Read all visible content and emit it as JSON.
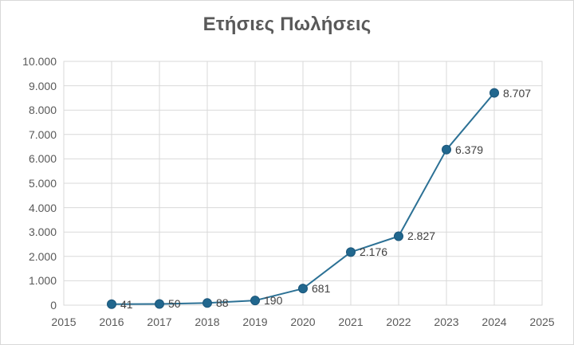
{
  "chart_data": {
    "type": "line",
    "title": "Ετήσιες Πωλήσεις",
    "x": [
      2016,
      2017,
      2018,
      2019,
      2020,
      2021,
      2022,
      2023,
      2024
    ],
    "values": [
      41,
      50,
      88,
      190,
      681,
      2176,
      2827,
      6379,
      8707
    ],
    "point_labels": [
      "41",
      "50",
      "88",
      "190",
      "681",
      "2.176",
      "2.827",
      "6.379",
      "8.707"
    ],
    "x_ticks": [
      "2015",
      "2016",
      "2017",
      "2018",
      "2019",
      "2020",
      "2021",
      "2022",
      "2023",
      "2024",
      "2025"
    ],
    "y_ticks": [
      "0",
      "1.000",
      "2.000",
      "3.000",
      "4.000",
      "5.000",
      "6.000",
      "7.000",
      "8.000",
      "9.000",
      "10.000"
    ],
    "xlim": [
      2015,
      2025
    ],
    "ylim": [
      0,
      10000
    ],
    "xlabel": "",
    "ylabel": "",
    "grid": "on",
    "legend": "none",
    "data_label_position": "right-of-marker",
    "colors": {
      "line": "#2c7195",
      "marker_fill": "#21678e",
      "marker_edge": "#1b567a",
      "grid": "#d9d9d9",
      "plot_border": "#d9d9d9",
      "axis_text": "#595959",
      "title_text": "#595959",
      "data_label_text": "#404040",
      "background": "#ffffff"
    }
  }
}
